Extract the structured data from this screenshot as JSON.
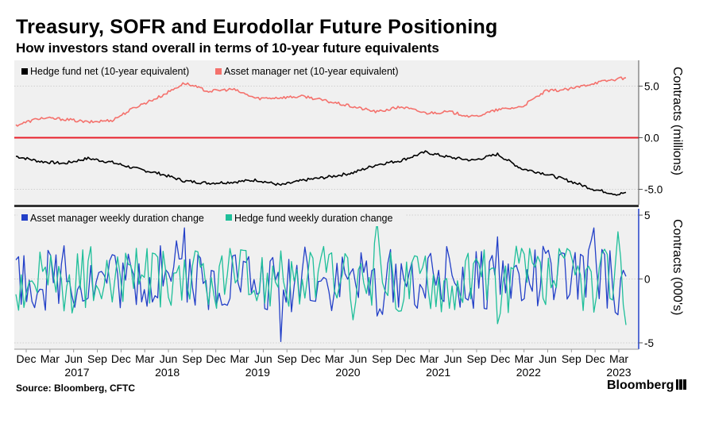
{
  "title": "Treasury, SOFR and Eurodollar Future Positioning",
  "subtitle": "How investors stand overall in terms of 10-year future equivalents",
  "source": "Source: Bloomberg, CFTC",
  "brand": "Bloomberg",
  "chart_data": [
    {
      "type": "line",
      "panel": "top",
      "ylabel": "Contracts (millions)",
      "ylim": [
        -6.5,
        7.5
      ],
      "yticks": [
        5.0,
        0.0,
        -5.0
      ],
      "ytick_labels": [
        "5.0",
        "0.0",
        "-5.0"
      ],
      "zero_line_color": "#e8202a",
      "legend_placement": "top-left",
      "x": [
        "2016-11",
        "2017-02",
        "2017-05",
        "2017-08",
        "2017-11",
        "2018-02",
        "2018-05",
        "2018-08",
        "2018-11",
        "2019-02",
        "2019-05",
        "2019-08",
        "2019-11",
        "2020-02",
        "2020-05",
        "2020-08",
        "2020-11",
        "2021-02",
        "2021-05",
        "2021-08",
        "2021-11",
        "2022-02",
        "2022-05",
        "2022-08",
        "2022-11",
        "2023-02",
        "2023-03"
      ],
      "series": [
        {
          "name": "Hedge fund net (10-year equivalent)",
          "color": "#000000",
          "values": [
            -1.8,
            -2.3,
            -2.5,
            -2.0,
            -2.4,
            -3.0,
            -3.5,
            -4.2,
            -4.4,
            -4.3,
            -4.1,
            -4.6,
            -4.1,
            -3.8,
            -3.4,
            -2.6,
            -2.2,
            -1.4,
            -1.9,
            -2.2,
            -1.6,
            -3.0,
            -3.5,
            -4.2,
            -5.0,
            -5.5,
            -5.3
          ]
        },
        {
          "name": "Asset manager net (10-year equivalent)",
          "color": "#f4716c",
          "values": [
            1.2,
            1.9,
            1.8,
            1.5,
            1.7,
            3.0,
            4.0,
            5.3,
            4.5,
            4.7,
            3.8,
            3.9,
            4.0,
            3.5,
            3.0,
            2.5,
            3.0,
            2.4,
            2.5,
            2.0,
            2.7,
            3.0,
            4.5,
            4.7,
            5.3,
            5.7,
            5.8
          ]
        }
      ]
    },
    {
      "type": "line",
      "panel": "bottom",
      "ylabel": "Contracts (000's)",
      "ylim": [
        -5.5,
        5.5
      ],
      "yticks": [
        5,
        0,
        -5
      ],
      "ytick_labels": [
        "5",
        "0",
        "-5"
      ],
      "legend_placement": "top-left",
      "x": [
        "2016-11",
        "2017-02",
        "2017-05",
        "2017-08",
        "2017-11",
        "2018-02",
        "2018-05",
        "2018-08",
        "2018-11",
        "2019-02",
        "2019-05",
        "2019-08",
        "2019-11",
        "2020-02",
        "2020-05",
        "2020-08",
        "2020-11",
        "2021-02",
        "2021-05",
        "2021-08",
        "2021-11",
        "2022-02",
        "2022-05",
        "2022-08",
        "2022-11",
        "2023-02",
        "2023-03"
      ],
      "series": [
        {
          "name": "Asset manager weekly duration change",
          "color": "#2340c8",
          "values": [
            1.5,
            -0.8,
            2.6,
            -1.5,
            1.9,
            -2.0,
            2.6,
            4.0,
            -2.4,
            1.8,
            -1.2,
            -4.9,
            2.5,
            -1.0,
            0.8,
            -2.9,
            1.2,
            -1.5,
            1.6,
            -2.3,
            3.3,
            -1.7,
            2.0,
            -1.2,
            4.0,
            -2.8,
            0.2
          ]
        },
        {
          "name": "Hedge fund weekly duration change",
          "color": "#1fbf9a",
          "values": [
            -1.2,
            2.1,
            -2.5,
            1.4,
            -1.8,
            2.4,
            -2.2,
            1.5,
            -2.0,
            1.3,
            -1.7,
            2.2,
            -1.5,
            1.9,
            -3.2,
            4.5,
            -2.5,
            1.8,
            -2.3,
            1.2,
            -3.5,
            2.4,
            -2.0,
            2.2,
            -2.6,
            3.7,
            -3.6
          ]
        }
      ]
    }
  ],
  "x_axis": {
    "month_labels": [
      "Dec",
      "Mar",
      "Jun",
      "Sep",
      "Dec",
      "Mar",
      "Jun",
      "Sep",
      "Dec",
      "Mar",
      "Jun",
      "Sep",
      "Dec",
      "Mar",
      "Jun",
      "Sep",
      "Dec",
      "Mar",
      "Jun",
      "Sep",
      "Dec",
      "Mar",
      "Jun",
      "Sep",
      "Dec",
      "Mar"
    ],
    "year_labels": [
      "2017",
      "2018",
      "2019",
      "2020",
      "2021",
      "2022",
      "2023"
    ]
  }
}
